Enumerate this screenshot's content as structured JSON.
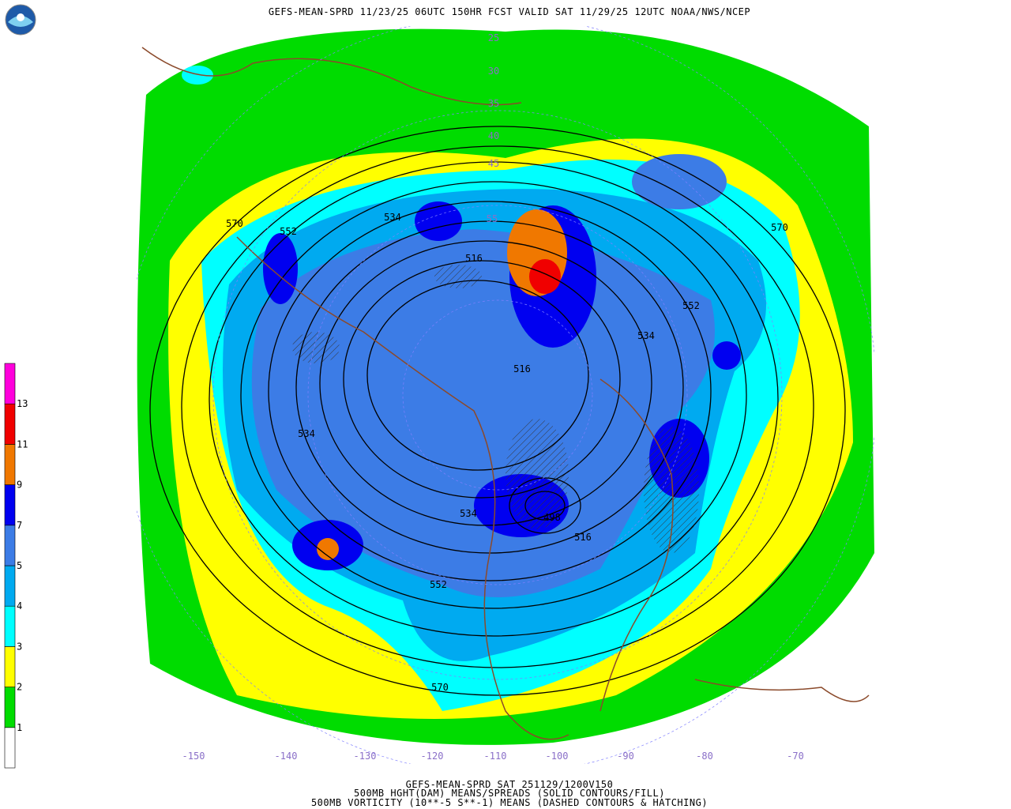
{
  "header": {
    "title": "GEFS-MEAN-SPRD 11/23/25 06UTC 150HR FCST VALID SAT 11/29/25 12UTC NOAA/NWS/NCEP"
  },
  "footer": {
    "lines": [
      "GEFS-MEAN-SPRD SAT 251129/1200V150",
      "500MB HGHT(DAM) MEANS/SPREADS (SOLID CONTOURS/FILL)",
      "500MB VORTICITY (10**-5 S**-1) MEANS (DASHED CONTOURS & HATCHING)"
    ]
  },
  "legend": {
    "labels": [
      "1",
      "2",
      "3",
      "4",
      "5",
      "7",
      "9",
      "11",
      "13"
    ],
    "colors": [
      "#ffffff",
      "#00dc00",
      "#ffff00",
      "#00ffff",
      "#00aaf0",
      "#3c7ce6",
      "#0000f0",
      "#f07800",
      "#f00000",
      "#ff00dc"
    ]
  },
  "map": {
    "contour_labels": [
      "570",
      "552",
      "534",
      "516",
      "552",
      "534",
      "570",
      "534",
      "516",
      "534",
      "498",
      "516",
      "552",
      "570"
    ],
    "lat_labels": [
      "25",
      "30",
      "35",
      "40",
      "45",
      "55"
    ],
    "lon_labels": [
      "-150",
      "-140",
      "-130",
      "-120",
      "-110",
      "-100",
      "-90",
      "-80",
      "-70"
    ]
  }
}
